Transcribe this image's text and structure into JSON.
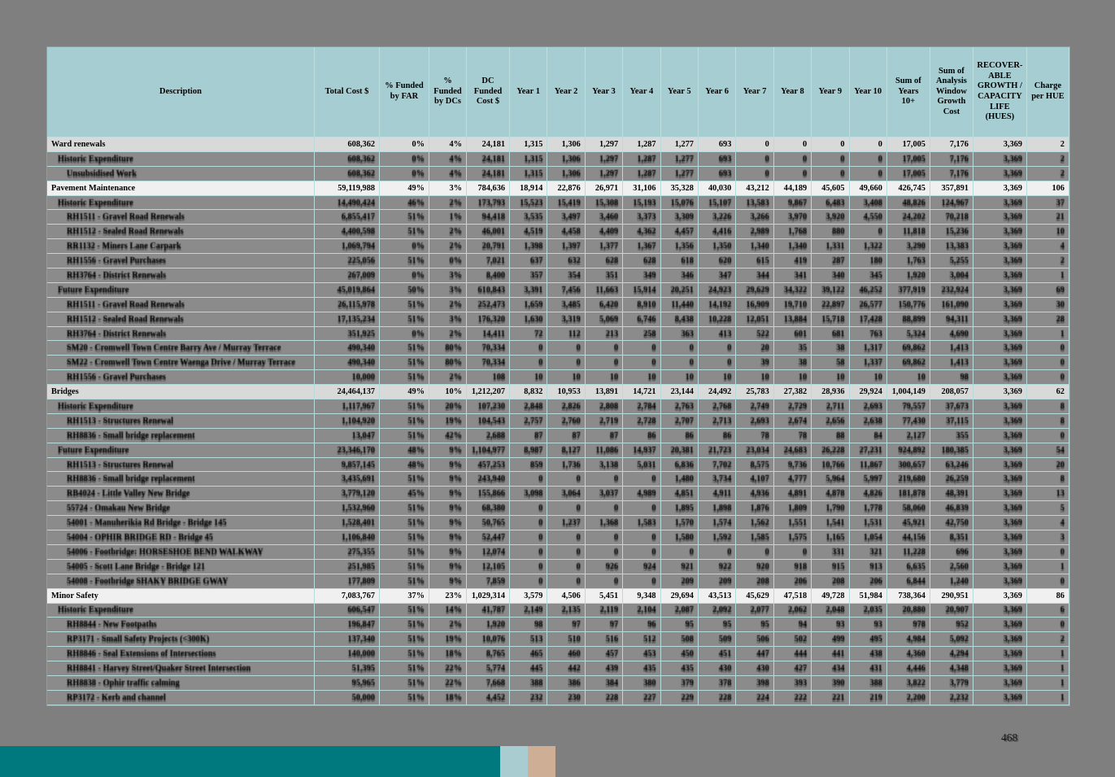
{
  "header": {
    "columns": [
      "Description",
      "Total Cost $",
      "% Funded\nby FAR",
      "%\nFunded\nby DCs",
      "DC\nFunded\nCost $",
      "Year 1",
      "Year 2",
      "Year 3",
      "Year 4",
      "Year 5",
      "Year 6",
      "Year 7",
      "Year 8",
      "Year 9",
      "Year 10",
      "Sum of\nYears\n10+",
      "Sum of\nAnalysis\nWindow\nGrowth\nCost",
      "RECOVER-\nABLE\nGROWTH /\nCAPACITY\nLIFE\n(HUES)",
      "Charge\nper HUE"
    ]
  },
  "rows": [
    {
      "label": "Ward renewals",
      "level": 0,
      "type": "section",
      "shade": "a",
      "values": [
        "608,362",
        "0%",
        "4%",
        "24,181",
        "1,315",
        "1,306",
        "1,297",
        "1,287",
        "1,277",
        "693",
        "0",
        "0",
        "0",
        "0",
        "17,005",
        "7,176",
        "3,369",
        "2"
      ]
    },
    {
      "label": "Historic Expenditure",
      "level": 1,
      "type": "ghost",
      "values": [
        "608,362",
        "0%",
        "4%",
        "24,181",
        "1,315",
        "1,306",
        "1,297",
        "1,287",
        "1,277",
        "693",
        "0",
        "0",
        "0",
        "0",
        "17,005",
        "7,176",
        "3,369",
        "2"
      ]
    },
    {
      "label": "Unsubsidised Work",
      "level": 2,
      "type": "ghost",
      "values": [
        "608,362",
        "0%",
        "4%",
        "24,181",
        "1,315",
        "1,306",
        "1,297",
        "1,287",
        "1,277",
        "693",
        "0",
        "0",
        "0",
        "0",
        "17,005",
        "7,176",
        "3,369",
        "2"
      ]
    },
    {
      "label": "Pavement Maintenance",
      "level": 0,
      "type": "section",
      "shade": "b",
      "values": [
        "59,119,988",
        "49%",
        "3%",
        "784,636",
        "18,914",
        "22,876",
        "26,971",
        "31,106",
        "35,328",
        "40,030",
        "43,212",
        "44,189",
        "45,605",
        "49,660",
        "426,745",
        "357,891",
        "3,369",
        "106"
      ]
    },
    {
      "label": "Historic Expenditure",
      "level": 1,
      "type": "ghost",
      "values": [
        "14,490,424",
        "46%",
        "2%",
        "173,793",
        "15,523",
        "15,419",
        "15,308",
        "15,193",
        "15,076",
        "15,107",
        "13,583",
        "9,867",
        "6,483",
        "3,408",
        "48,826",
        "124,967",
        "3,369",
        "37"
      ]
    },
    {
      "label": "RH1511 - Gravel Road Renewals",
      "level": 2,
      "type": "ghost",
      "values": [
        "6,855,417",
        "51%",
        "1%",
        "94,418",
        "3,535",
        "3,497",
        "3,460",
        "3,373",
        "3,309",
        "3,226",
        "3,266",
        "3,970",
        "3,920",
        "4,550",
        "24,202",
        "70,218",
        "3,369",
        "21"
      ]
    },
    {
      "label": "RH1512 - Sealed Road Renewals",
      "level": 2,
      "type": "ghost",
      "values": [
        "4,400,598",
        "51%",
        "2%",
        "46,001",
        "4,519",
        "4,458",
        "4,409",
        "4,362",
        "4,457",
        "4,416",
        "2,989",
        "1,768",
        "880",
        "0",
        "11,818",
        "15,236",
        "3,369",
        "10"
      ]
    },
    {
      "label": "RR1132 - Miners Lane Carpark",
      "level": 2,
      "type": "ghost",
      "values": [
        "1,069,794",
        "0%",
        "2%",
        "20,791",
        "1,398",
        "1,397",
        "1,377",
        "1,367",
        "1,356",
        "1,350",
        "1,340",
        "1,340",
        "1,331",
        "1,322",
        "3,290",
        "13,383",
        "3,369",
        "4"
      ]
    },
    {
      "label": "RH1556 - Gravel Purchases",
      "level": 2,
      "type": "ghost",
      "values": [
        "225,056",
        "51%",
        "0%",
        "7,021",
        "637",
        "632",
        "628",
        "628",
        "618",
        "620",
        "615",
        "419",
        "287",
        "180",
        "1,763",
        "5,255",
        "3,369",
        "2"
      ]
    },
    {
      "label": "RH3764 - District Renewals",
      "level": 2,
      "type": "ghost",
      "values": [
        "267,009",
        "0%",
        "3%",
        "8,400",
        "357",
        "354",
        "351",
        "349",
        "346",
        "347",
        "344",
        "341",
        "340",
        "345",
        "1,920",
        "3,004",
        "3,369",
        "1"
      ]
    },
    {
      "label": "Future Expenditure",
      "level": 1,
      "type": "ghost",
      "values": [
        "45,019,864",
        "50%",
        "3%",
        "610,843",
        "3,391",
        "7,456",
        "11,663",
        "15,914",
        "20,251",
        "24,923",
        "29,629",
        "34,322",
        "39,122",
        "46,252",
        "377,919",
        "232,924",
        "3,369",
        "69"
      ]
    },
    {
      "label": "RH1511 - Gravel Road Renewals",
      "level": 2,
      "type": "ghost",
      "values": [
        "26,115,978",
        "51%",
        "2%",
        "252,473",
        "1,659",
        "3,485",
        "6,420",
        "8,910",
        "11,440",
        "14,192",
        "16,909",
        "19,710",
        "22,897",
        "26,577",
        "150,776",
        "161,090",
        "3,369",
        "30"
      ]
    },
    {
      "label": "RH1512 - Sealed Road Renewals",
      "level": 2,
      "type": "ghost",
      "values": [
        "17,135,234",
        "51%",
        "3%",
        "176,320",
        "1,630",
        "3,319",
        "5,069",
        "6,746",
        "8,438",
        "10,228",
        "12,051",
        "13,884",
        "15,718",
        "17,428",
        "88,899",
        "94,311",
        "3,369",
        "28"
      ]
    },
    {
      "label": "RH3764 - District Renewals",
      "level": 2,
      "type": "ghost",
      "values": [
        "351,925",
        "0%",
        "2%",
        "14,411",
        "72",
        "112",
        "213",
        "258",
        "363",
        "413",
        "522",
        "601",
        "681",
        "763",
        "5,324",
        "4,690",
        "3,369",
        "1"
      ]
    },
    {
      "label": "SM20 - Cromwell Town Centre Barry Ave / Murray Terrace",
      "level": 2,
      "type": "ghost",
      "values": [
        "490,340",
        "51%",
        "80%",
        "70,334",
        "0",
        "0",
        "0",
        "0",
        "0",
        "0",
        "20",
        "35",
        "38",
        "1,317",
        "69,862",
        "1,413",
        "3,369",
        "0"
      ]
    },
    {
      "label": "SM22 - Cromwell Town Centre Waenga Drive / Murray Terrace",
      "level": 2,
      "type": "ghost",
      "values": [
        "490,340",
        "51%",
        "80%",
        "70,334",
        "0",
        "0",
        "0",
        "0",
        "0",
        "0",
        "39",
        "38",
        "58",
        "1,337",
        "69,862",
        "1,413",
        "3,369",
        "0"
      ]
    },
    {
      "label": "RH1556 - Gravel Purchases",
      "level": 2,
      "type": "ghost",
      "values": [
        "10,000",
        "51%",
        "2%",
        "108",
        "10",
        "10",
        "10",
        "10",
        "10",
        "10",
        "10",
        "10",
        "10",
        "10",
        "10",
        "98",
        "3,369",
        "0"
      ]
    },
    {
      "label": "Bridges",
      "level": 0,
      "type": "section",
      "shade": "a",
      "values": [
        "24,464,137",
        "49%",
        "10%",
        "1,212,207",
        "8,832",
        "10,953",
        "13,891",
        "14,721",
        "23,144",
        "24,492",
        "25,783",
        "27,382",
        "28,936",
        "29,924",
        "1,004,149",
        "208,057",
        "3,369",
        "62"
      ]
    },
    {
      "label": "Historic Expenditure",
      "level": 1,
      "type": "ghost",
      "values": [
        "1,117,967",
        "51%",
        "20%",
        "107,230",
        "2,848",
        "2,826",
        "2,808",
        "2,784",
        "2,763",
        "2,768",
        "2,749",
        "2,729",
        "2,711",
        "2,693",
        "79,557",
        "37,673",
        "3,369",
        "8"
      ]
    },
    {
      "label": "RH1513 - Structures Renewal",
      "level": 2,
      "type": "ghost",
      "values": [
        "1,104,920",
        "51%",
        "19%",
        "104,543",
        "2,757",
        "2,760",
        "2,719",
        "2,728",
        "2,707",
        "2,713",
        "2,693",
        "2,674",
        "2,656",
        "2,638",
        "77,430",
        "37,115",
        "3,369",
        "8"
      ]
    },
    {
      "label": "RH8836 - Small bridge replacement",
      "level": 2,
      "type": "ghost",
      "values": [
        "13,047",
        "51%",
        "42%",
        "2,688",
        "87",
        "87",
        "87",
        "86",
        "86",
        "86",
        "78",
        "78",
        "88",
        "84",
        "2,127",
        "355",
        "3,369",
        "0"
      ]
    },
    {
      "label": "Future Expenditure",
      "level": 1,
      "type": "ghost",
      "values": [
        "23,346,170",
        "48%",
        "9%",
        "1,104,977",
        "8,987",
        "8,127",
        "11,086",
        "14,937",
        "20,381",
        "21,723",
        "23,034",
        "24,683",
        "26,228",
        "27,231",
        "924,892",
        "180,385",
        "3,369",
        "54"
      ]
    },
    {
      "label": "RH1513 - Structures Renewal",
      "level": 2,
      "type": "ghost",
      "values": [
        "9,857,145",
        "48%",
        "9%",
        "457,253",
        "859",
        "1,736",
        "3,138",
        "5,031",
        "6,836",
        "7,702",
        "8,575",
        "9,736",
        "10,766",
        "11,867",
        "300,657",
        "63,246",
        "3,369",
        "20"
      ]
    },
    {
      "label": "RH8836 - Small bridge replacement",
      "level": 2,
      "type": "ghost",
      "values": [
        "3,435,691",
        "51%",
        "9%",
        "243,940",
        "0",
        "0",
        "0",
        "0",
        "1,480",
        "3,734",
        "4,107",
        "4,777",
        "5,964",
        "5,997",
        "219,680",
        "26,259",
        "3,369",
        "8"
      ]
    },
    {
      "label": "RB4024 - Little Valley New Bridge",
      "level": 2,
      "type": "ghost",
      "values": [
        "3,779,120",
        "45%",
        "9%",
        "155,866",
        "3,098",
        "3,064",
        "3,037",
        "4,989",
        "4,851",
        "4,911",
        "4,936",
        "4,891",
        "4,878",
        "4,826",
        "181,878",
        "48,391",
        "3,369",
        "13"
      ]
    },
    {
      "label": "55724 - Omakau New Bridge",
      "level": 2,
      "type": "ghost",
      "values": [
        "1,532,960",
        "51%",
        "9%",
        "68,380",
        "0",
        "0",
        "0",
        "0",
        "1,895",
        "1,898",
        "1,876",
        "1,809",
        "1,790",
        "1,778",
        "58,060",
        "46,839",
        "3,369",
        "5"
      ]
    },
    {
      "label": "54001 - Manuherikia Rd Bridge - Bridge 145",
      "level": 2,
      "type": "ghost",
      "values": [
        "1,528,401",
        "51%",
        "9%",
        "50,765",
        "0",
        "1,237",
        "1,368",
        "1,583",
        "1,570",
        "1,574",
        "1,562",
        "1,551",
        "1,541",
        "1,531",
        "45,921",
        "42,750",
        "3,369",
        "4"
      ]
    },
    {
      "label": "54004 - OPHIR BRIDGE RD - Bridge 45",
      "level": 2,
      "type": "ghost",
      "values": [
        "1,106,840",
        "51%",
        "9%",
        "52,447",
        "0",
        "0",
        "0",
        "0",
        "1,580",
        "1,592",
        "1,585",
        "1,575",
        "1,165",
        "1,054",
        "44,156",
        "8,351",
        "3,369",
        "3"
      ]
    },
    {
      "label": "54006 - Footbridge: HORSESHOE BEND WALKWAY",
      "level": 2,
      "type": "ghost",
      "values": [
        "275,355",
        "51%",
        "9%",
        "12,074",
        "0",
        "0",
        "0",
        "0",
        "0",
        "0",
        "0",
        "0",
        "331",
        "321",
        "11,228",
        "696",
        "3,369",
        "0"
      ]
    },
    {
      "label": "54005 - Scott Lane Bridge - Bridge 121",
      "level": 2,
      "type": "ghost",
      "values": [
        "251,985",
        "51%",
        "9%",
        "12,105",
        "0",
        "0",
        "926",
        "924",
        "921",
        "922",
        "920",
        "918",
        "915",
        "913",
        "6,635",
        "2,560",
        "3,369",
        "1"
      ]
    },
    {
      "label": "54008 - Footbridge SHAKY BRIDGE GWAY",
      "level": 2,
      "type": "ghost",
      "values": [
        "177,809",
        "51%",
        "9%",
        "7,859",
        "0",
        "0",
        "0",
        "0",
        "209",
        "209",
        "208",
        "206",
        "208",
        "206",
        "6,844",
        "1,240",
        "3,369",
        "0"
      ]
    },
    {
      "label": "Minor Safety",
      "level": 0,
      "type": "section",
      "shade": "b",
      "values": [
        "7,083,767",
        "37%",
        "23%",
        "1,029,314",
        "3,579",
        "4,506",
        "5,451",
        "9,348",
        "29,694",
        "43,513",
        "45,629",
        "47,518",
        "49,728",
        "51,984",
        "738,364",
        "290,951",
        "3,369",
        "86"
      ]
    },
    {
      "label": "Historic Expenditure",
      "level": 1,
      "type": "ghost",
      "values": [
        "606,547",
        "51%",
        "14%",
        "41,787",
        "2,149",
        "2,135",
        "2,119",
        "2,104",
        "2,087",
        "2,092",
        "2,077",
        "2,062",
        "2,048",
        "2,035",
        "20,880",
        "20,907",
        "3,369",
        "6"
      ]
    },
    {
      "label": "RH8844 - New Footpaths",
      "level": 2,
      "type": "ghost",
      "values": [
        "196,847",
        "51%",
        "2%",
        "1,920",
        "98",
        "97",
        "97",
        "96",
        "95",
        "95",
        "95",
        "94",
        "93",
        "93",
        "978",
        "952",
        "3,369",
        "0"
      ]
    },
    {
      "label": "RP3171 - Small Safety Projects (<300K)",
      "level": 2,
      "type": "ghost",
      "values": [
        "137,340",
        "51%",
        "19%",
        "10,076",
        "513",
        "510",
        "516",
        "512",
        "508",
        "509",
        "506",
        "502",
        "499",
        "495",
        "4,984",
        "5,092",
        "3,369",
        "2"
      ]
    },
    {
      "label": "RH8846 - Seal Extensions of Intersections",
      "level": 2,
      "type": "ghost",
      "values": [
        "140,000",
        "51%",
        "18%",
        "8,765",
        "465",
        "460",
        "457",
        "453",
        "450",
        "451",
        "447",
        "444",
        "441",
        "438",
        "4,360",
        "4,294",
        "3,369",
        "1"
      ]
    },
    {
      "label": "RH8841 - Harvey Street/Quaker Street Intersection",
      "level": 2,
      "type": "ghost",
      "values": [
        "51,395",
        "51%",
        "22%",
        "5,774",
        "445",
        "442",
        "439",
        "435",
        "435",
        "430",
        "430",
        "427",
        "434",
        "431",
        "4,446",
        "4,348",
        "3,369",
        "1"
      ]
    },
    {
      "label": "RH8838 - Ophir traffic calming",
      "level": 2,
      "type": "ghost",
      "values": [
        "95,965",
        "51%",
        "22%",
        "7,668",
        "388",
        "386",
        "384",
        "380",
        "379",
        "378",
        "398",
        "393",
        "390",
        "388",
        "3,822",
        "3,779",
        "3,369",
        "1"
      ]
    },
    {
      "label": "RP3172 - Kerb and channel",
      "level": 2,
      "type": "ghost",
      "values": [
        "50,000",
        "51%",
        "18%",
        "4,452",
        "232",
        "230",
        "228",
        "227",
        "229",
        "228",
        "224",
        "222",
        "221",
        "219",
        "2,200",
        "2,232",
        "3,369",
        "1"
      ]
    }
  ],
  "footer": {
    "page_number": "468",
    "bar_color": "#00797e",
    "square1_color": "#a9ccd0",
    "square2_color": "#cfae96"
  },
  "colors": {
    "page_background": "#7f7f7f",
    "header_background": "#a6ced2",
    "grid_line": "#b7dadc",
    "ghost_row_background": "#8b8b8b",
    "section_row_gray": "#d9d9d9",
    "section_row_light": "#f0f0f0"
  }
}
